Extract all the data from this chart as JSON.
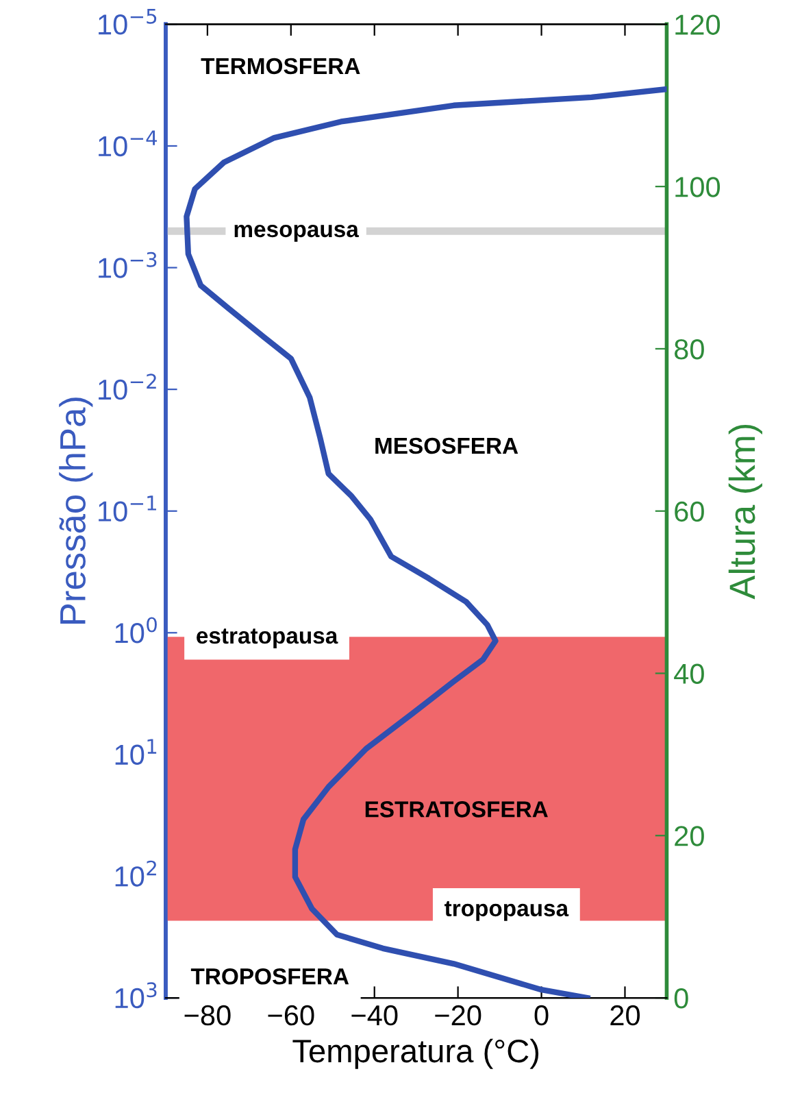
{
  "chart_data": {
    "type": "line",
    "xlabel": "Temperatura (°C)",
    "ylabel": "Pressão (hPa)",
    "y2label": "Altura (km)",
    "xlim": [
      -90,
      30
    ],
    "xticks": [
      {
        "value": -80,
        "label": "−80"
      },
      {
        "value": -60,
        "label": "−60"
      },
      {
        "value": -40,
        "label": "−40"
      },
      {
        "value": -20,
        "label": "−20"
      },
      0,
      20
    ],
    "log": "y",
    "ylim": [
      1000,
      1e-05
    ],
    "yticks": [
      {
        "value": 1e-05,
        "label": "10$^{−5}$"
      },
      {
        "value": 0.0001,
        "label": "10$^{−4}$"
      },
      {
        "value": 0.001,
        "label": "10$^{−3}$"
      },
      {
        "value": 0.01,
        "label": "10$^{−2}$"
      },
      {
        "value": 0.1,
        "label": "10$^{−1}$"
      },
      {
        "value": 1,
        "label": "10$^{0}$"
      },
      {
        "value": 10,
        "label": "10$^{1}$"
      },
      {
        "value": 100,
        "label": "10$^{2}$"
      },
      {
        "value": 1000,
        "label": "10$^{3}$"
      }
    ],
    "y2lim": [
      0,
      120
    ],
    "y2ticks": [
      0,
      20,
      40,
      60,
      80,
      100,
      120
    ],
    "series": [
      {
        "color": "#2f4fb0",
        "axis": "y2",
        "x": [
          11,
          0,
          -21,
          -38,
          -49,
          -55,
          -59,
          -59,
          -57,
          -51,
          -42,
          -31,
          -21,
          -14,
          -11,
          -13,
          -18,
          -27,
          -36,
          -41,
          -45.6,
          -51,
          -53,
          -55.5,
          -60,
          -66.6,
          -75,
          -81.6,
          -84.6,
          -85,
          -83,
          -76,
          -64,
          -48,
          -21,
          12,
          30
        ],
        "values": [
          0,
          1,
          4.2,
          6.1,
          7.8,
          11,
          14.9,
          18.3,
          22,
          26,
          30.7,
          35,
          39,
          41.7,
          44,
          46,
          48.8,
          51.7,
          54.4,
          59,
          61.9,
          64.6,
          69,
          74,
          78.8,
          81.5,
          85,
          87.8,
          91.7,
          96.3,
          99.7,
          103,
          106,
          108,
          110,
          111,
          112
        ]
      }
    ],
    "bands": [
      {
        "axis": "y2",
        "from": 9.5,
        "to": 44.5,
        "label": "ESTRATOSFERA",
        "color": "#f0676b"
      }
    ],
    "ref_lines": [
      {
        "axis": "y2",
        "value": 94.5,
        "label": "mesopausa",
        "color": "#d3d3d3"
      }
    ],
    "annotations": [
      "TERMOSFERA",
      "MESOSFERA",
      "estratopausa",
      "tropopausa",
      "TROPOSFERA"
    ],
    "grid": false
  }
}
